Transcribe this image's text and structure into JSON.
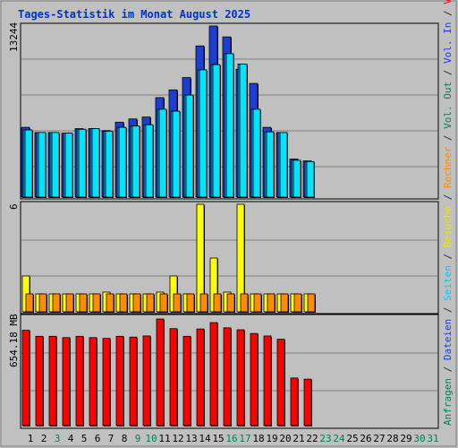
{
  "chart_data": {
    "type": "bar",
    "title": "Tages-Statistik im Monat August 2025",
    "categories": [
      "1",
      "2",
      "3",
      "4",
      "5",
      "6",
      "7",
      "8",
      "9",
      "10",
      "11",
      "12",
      "13",
      "14",
      "15",
      "16",
      "17",
      "18",
      "19",
      "20",
      "21",
      "22",
      "23",
      "24",
      "25",
      "26",
      "27",
      "28",
      "29",
      "30",
      "31"
    ],
    "weekend_days": [
      "3",
      "9",
      "10",
      "16",
      "17",
      "23",
      "24",
      "30",
      "31"
    ],
    "panels": {
      "hits": {
        "ymax_label": "13244",
        "ymax": 13244,
        "series": [
          {
            "name": "Anfragen",
            "color": "#1a3fd6",
            "values": [
              5400,
              5000,
              5000,
              4950,
              5300,
              5300,
              5150,
              5800,
              6050,
              6200,
              7700,
              8300,
              9250,
              11700,
              13244,
              12400,
              9900,
              8800,
              5400,
              5000,
              2950,
              2800
            ]
          },
          {
            "name": "Dateien",
            "color": "#1aa3d6",
            "values": [
              5200,
              5000,
              5000,
              4950,
              5250,
              5300,
              5100,
              5400,
              5500,
              5600,
              6800,
              6650,
              7900,
              9850,
              10250,
              11100,
              10300,
              6800,
              5050,
              5000,
              2850,
              2750
            ]
          },
          {
            "name": "Seiten",
            "color": "#00e5ff",
            "values": [
              5200,
              5000,
              5000,
              4950,
              5250,
              5300,
              5100,
              5400,
              5500,
              5600,
              6800,
              6650,
              7900,
              9850,
              10250,
              11100,
              10300,
              6800,
              5050,
              5000,
              2850,
              2750
            ]
          }
        ]
      },
      "visits": {
        "ymax_label": "6",
        "ymax": 6,
        "series": [
          {
            "name": "Besuche",
            "color": "#ffff00",
            "values": [
              2,
              1,
              1,
              1,
              1,
              1,
              1.1,
              1,
              1,
              1,
              1.1,
              2,
              1,
              6,
              3,
              1.1,
              6,
              1,
              1,
              1,
              1,
              1
            ]
          },
          {
            "name": "Rechner",
            "color": "#ff8c00",
            "values": [
              1,
              1,
              1,
              1,
              1,
              1,
              1,
              1,
              1,
              1,
              1,
              1,
              1,
              1,
              1,
              1,
              1,
              1,
              1,
              1,
              1,
              1
            ]
          }
        ]
      },
      "volume": {
        "ymax_label": "654.18 MB",
        "ymax": 654.18,
        "series": [
          {
            "name": "Volumen",
            "color": "#ff0000",
            "values": [
              585,
              548,
              548,
              540,
              548,
              540,
              535,
              548,
              543,
              550,
              654,
              595,
              548,
              593,
              632,
              600,
              588,
              565,
              550,
              530,
              292,
              285
            ]
          }
        ]
      }
    }
  },
  "legend_right": [
    {
      "text": "Anfragen",
      "color": "#00805a"
    },
    {
      "text": " / ",
      "color": "#333333"
    },
    {
      "text": "Dateien",
      "color": "#1a3fd6"
    },
    {
      "text": " / ",
      "color": "#333333"
    },
    {
      "text": "Seiten",
      "color": "#00c8ff"
    },
    {
      "text": " / ",
      "color": "#333333"
    },
    {
      "text": "Besuche",
      "color": "#e8e800"
    },
    {
      "text": " / ",
      "color": "#333333"
    },
    {
      "text": "Rechner",
      "color": "#ff8c00"
    },
    {
      "text": " / ",
      "color": "#333333"
    },
    {
      "text": "Vol. Out",
      "color": "#00805a"
    },
    {
      "text": " / ",
      "color": "#333333"
    },
    {
      "text": "Vol. In",
      "color": "#1a3fd6"
    },
    {
      "text": " / ",
      "color": "#333333"
    },
    {
      "text": "Volumen",
      "color": "#ff0000"
    }
  ],
  "colors": {
    "background": "#c0c0c0",
    "title": "#0033cc",
    "weekday_label": "#000000",
    "weekend_label": "#00805a",
    "grid": "#808080"
  }
}
